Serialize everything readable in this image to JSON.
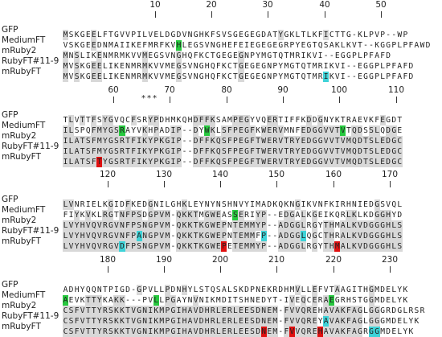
{
  "names": [
    "GFP",
    "MediumFT",
    "mRuby2",
    "RubyFT#11-9",
    "mRubyFT"
  ],
  "colors": {
    "conserved": "#d8d8d8",
    "green": "#27c93f",
    "cyan": "#3fd3d8",
    "red": "#e01010"
  },
  "blocks": [
    {
      "ticks": [
        10,
        20,
        30,
        40,
        50
      ],
      "stars": "",
      "seqs": [
        "MSKGEELFTGVVPILVELDGDVNGHKFSVSGEGEGDATYGKLTLKFICTTG-KLPVP--WP",
        "VSKGEEDNMAIIKEFMRFKVHLEGSVNGHEFEIEGEGEGRPYEGTQSAKLKVT--KGGPLPFAWD",
        "MNSLIKENMRMKVVMEGSVNGHQFKCTGEGEGNPYMGTQTMRIKVI--EGGPLPFAFD",
        "MVSKGEELIKENMRMKVVMEGSVNGHQFKCTGEGEGNPYMGTQTMRIKVI--EGGPLPFAFD",
        "MVSKGEELIKENMRMKVVMEGSVNGHQFKCTGEGEGNPYMGTQTMRIKVI--EGGPLPFAFD"
      ]
    },
    {
      "ticks": [
        60,
        70,
        80,
        90,
        100,
        110
      ],
      "stars": "***",
      "seqs": [
        "TLVTTFSYGVQCFSRYPDHMKQHDFFKSAMPEGYVQERTIFFKDDGNYKTRAEVKFEGDT",
        "ILSPQFMYGSRAYVKHPADIP--DYWKLSFPEGFKWERVMNFEDGGVVTVTQDSSLQDGE",
        "ILATSFMYGSRTFIKYPKGIP--DFFKQSFPEGFTWERVTRYEDGGVVTVMQDTSLEDGC",
        "ILATSFMYGSRTFIKYPKGIP--DFFKQSFPEGFTWERVTRYEDGGVVTVMQDTSLEDGC",
        "ILATSFTYGSRTFIKYPKGIP--DFFKQSFPEGFTWERVTRYEDGGVVTVMQDTSLEDGC"
      ]
    },
    {
      "ticks": [
        120,
        130,
        140,
        150,
        160,
        170
      ],
      "stars": "",
      "seqs": [
        "LVNRIELKGIDFKEDGNILGHKLEYNYNSHNVYIMADKQKNGIKVNFKIRHNIEDGSVQL",
        "FIYKVKLRGTNFPSDGPVM-QKKTMGWEASSERIYP--EDGALKGEIKQRLKLKDGGHYD",
        "LVYHVQVRGVNFPSNGPVM-QKKTKGWEPNTEMMYP--ADGGLRGYTHMALKVDGGGHLS",
        "LVYHVQVRGVNFPANGPVM-QKKTKGWEPNTEMMFP--ADGGLQGCTHRALKVDGGGHLS",
        "LVYHVQVRGVDFPSNGPVM-QKKTKGWEPETEMMYP--ADGGLRGYTHMALKVDGGGHLS"
      ]
    },
    {
      "ticks": [
        180,
        190,
        200,
        210,
        220,
        230
      ],
      "stars": "",
      "seqs": [
        "ADHYQQNTPIGD-GPVLLPDNHYLSTQSALSKDPNEKRDHMVLLEFVTAAGITHGMDELYK",
        "AEVKTTYKAKK---PVLLPGAYNVNIKMDITSHNEDYT-IVEQCERAEGRHSTGGMDELYK",
        "CSFVTTYRSKKTVGNIKMPGIHAVDHRLERLEESDNEM-FVVQREHAVAKFAGLGGGRDGLRSR",
        "CSFVTTYRSKKTVGNIKMPGIHAVDHRLERLEESDNEM-FVVQREYAVAKFAGLGGGMDELYK",
        "CSFVTTYRSKKTVGNIKMPGIHAVDHRLERLEESDNEM-FVVQREHAVAKFAGRGGMDELYK"
      ]
    }
  ]
}
